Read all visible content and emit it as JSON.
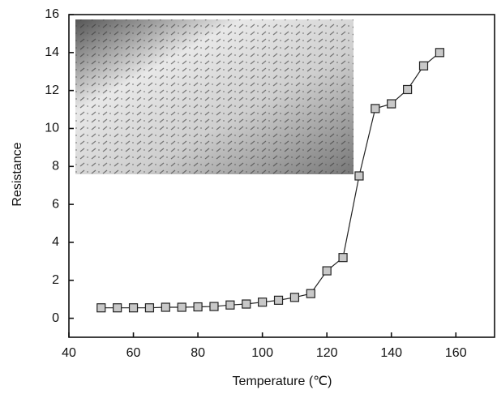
{
  "chart_data": {
    "type": "line",
    "x_label": "Temperature (℃)",
    "y_label": "Resistance",
    "x": [
      50,
      55,
      60,
      65,
      70,
      75,
      80,
      85,
      90,
      95,
      100,
      105,
      110,
      115,
      120,
      125,
      130,
      135,
      140,
      145,
      150,
      155
    ],
    "series": [
      {
        "name": "Resistance",
        "color": "#222222",
        "values": [
          0.55,
          0.55,
          0.55,
          0.55,
          0.58,
          0.58,
          0.6,
          0.62,
          0.7,
          0.75,
          0.85,
          0.95,
          1.1,
          1.3,
          2.5,
          3.2,
          7.5,
          11.05,
          11.3,
          12.05,
          13.3,
          14.0
        ]
      }
    ],
    "xlim": [
      40,
      172
    ],
    "ylim": [
      -1,
      16
    ],
    "xticks": [
      40,
      60,
      80,
      100,
      120,
      140,
      160
    ],
    "yticks": [
      0,
      2,
      4,
      6,
      8,
      10,
      12,
      14,
      16
    ]
  }
}
